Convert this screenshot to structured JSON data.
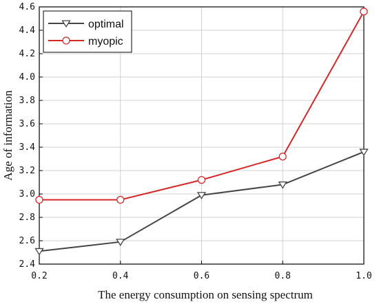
{
  "chart_data": {
    "type": "line",
    "xlabel": "The energy consumption on sensing spectrum",
    "ylabel": "Age of information",
    "xlim": [
      0.2,
      1.0
    ],
    "ylim": [
      2.4,
      4.6
    ],
    "x_ticks": [
      "0.2",
      "0.4",
      "0.6",
      "0.8",
      "1.0"
    ],
    "y_ticks": [
      "2.4",
      "2.6",
      "2.8",
      "3.0",
      "3.2",
      "3.4",
      "3.6",
      "3.8",
      "4.0",
      "4.2",
      "4.4",
      "4.6"
    ],
    "grid": true,
    "legend_position": "top-left",
    "x": [
      0.2,
      0.4,
      0.6,
      0.8,
      1.0
    ],
    "series": [
      {
        "name": "optimal",
        "marker": "triangle-down",
        "color": "#444444",
        "values": [
          2.51,
          2.59,
          2.99,
          3.08,
          3.36
        ]
      },
      {
        "name": "myopic",
        "marker": "circle",
        "color": "#d62728",
        "values": [
          2.95,
          2.95,
          3.12,
          3.32,
          4.56
        ]
      }
    ]
  }
}
